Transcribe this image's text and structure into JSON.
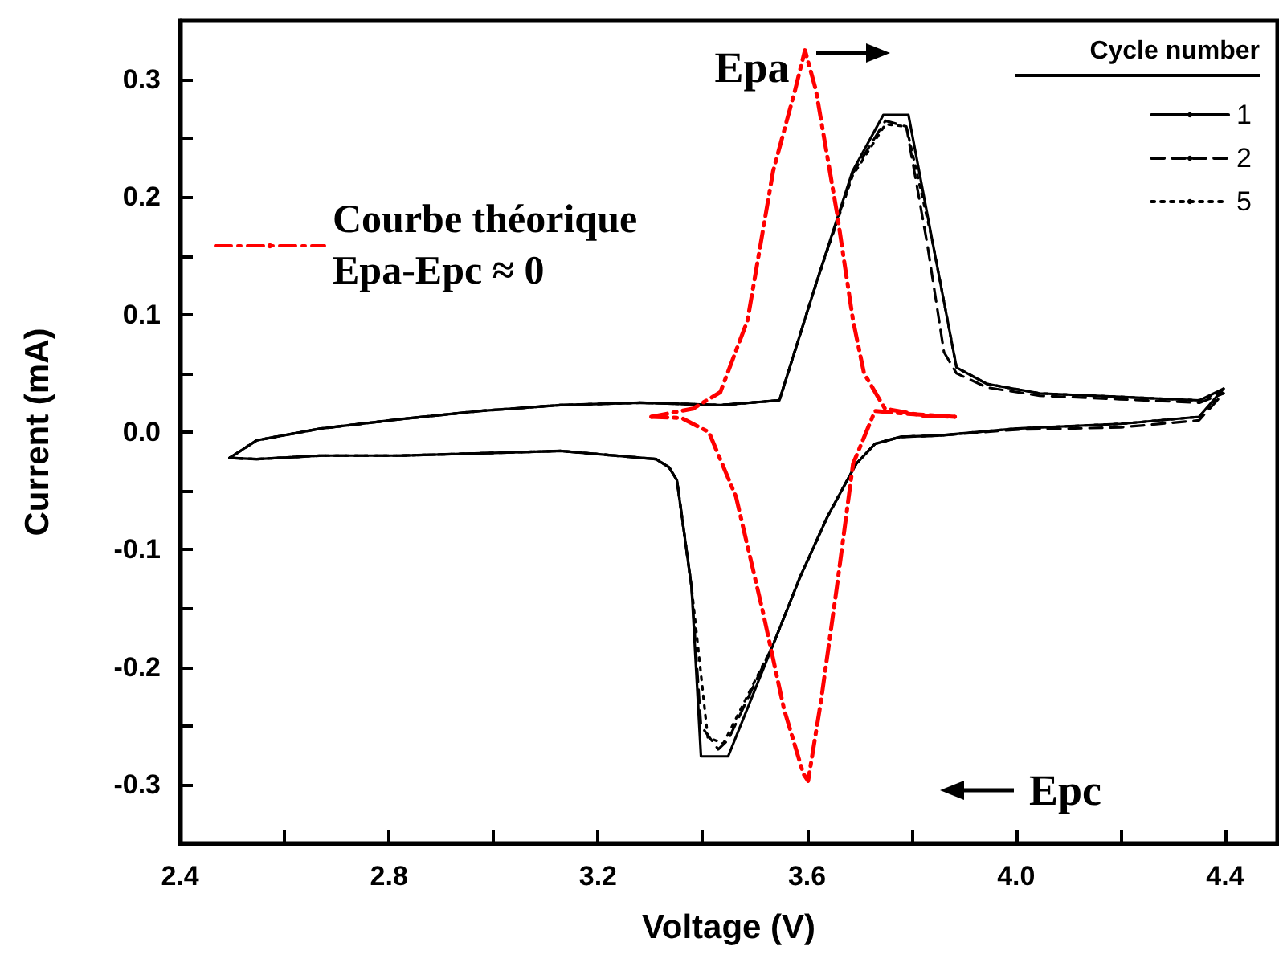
{
  "chart_data": {
    "type": "line",
    "xlabel": "Voltage (V)",
    "ylabel": "Current (mA)",
    "legend_title": "Cycle number",
    "legend": "top right",
    "grid": false,
    "marker": "none",
    "xlim": [
      2.4,
      4.5
    ],
    "ylim": [
      -0.35,
      0.35
    ],
    "xticks": [
      2.4,
      {
        "value": 2.6,
        "label": null
      },
      2.8,
      {
        "value": 3.0,
        "label": null
      },
      3.2,
      {
        "value": 3.4,
        "label": null
      },
      3.6,
      {
        "value": 3.8,
        "label": null
      },
      {
        "value": 4.0,
        "label": "4.0"
      },
      {
        "value": 4.2,
        "label": null
      },
      4.4
    ],
    "yticks": [
      -0.3,
      {
        "value": -0.25,
        "label": null
      },
      -0.2,
      {
        "value": -0.15,
        "label": null
      },
      -0.1,
      {
        "value": -0.05,
        "label": null
      },
      {
        "value": 0,
        "label": "0.0"
      },
      {
        "value": 0.05,
        "label": null
      },
      0.1,
      {
        "value": 0.15,
        "label": null
      },
      0.2,
      {
        "value": 0.25,
        "label": null
      },
      0.3
    ],
    "annotations": [
      "Epa",
      "Epc"
    ],
    "series": [
      {
        "name": "1",
        "color": "#000000",
        "line_style": "solid",
        "x": [
          2.495,
          2.547,
          2.669,
          2.822,
          2.975,
          3.128,
          3.281,
          3.434,
          3.547,
          3.617,
          3.687,
          3.746,
          3.794,
          3.84,
          3.886,
          3.944,
          4.045,
          4.198,
          4.351,
          4.397
        ],
        "values": [
          -0.022,
          -0.007,
          0.003,
          0.011,
          0.018,
          0.023,
          0.025,
          0.023,
          0.027,
          0.126,
          0.222,
          0.27,
          0.27,
          0.162,
          0.055,
          0.041,
          0.033,
          0.03,
          0.027,
          0.037
        ]
      },
      {
        "color": "#000000",
        "line_style": "solid",
        "x": [
          2.495,
          2.547,
          2.669,
          2.822,
          2.975,
          3.128,
          3.311,
          3.336,
          3.351,
          3.379,
          3.397,
          3.449,
          3.535,
          3.587,
          3.639,
          3.694,
          3.73,
          3.779,
          3.85,
          4.0,
          4.2,
          4.35,
          4.397
        ],
        "values": [
          -0.022,
          -0.023,
          -0.02,
          -0.02,
          -0.018,
          -0.016,
          -0.023,
          -0.03,
          -0.041,
          -0.132,
          -0.276,
          -0.276,
          -0.181,
          -0.123,
          -0.072,
          -0.027,
          -0.01,
          -0.004,
          -0.003,
          0.003,
          0.007,
          0.013,
          0.037
        ]
      },
      {
        "name": "2",
        "color": "#000000",
        "line_style": "dashed",
        "x": [
          2.495,
          2.547,
          2.669,
          2.822,
          2.975,
          3.128,
          3.281,
          3.434,
          3.547,
          3.617,
          3.687,
          3.75,
          3.79,
          3.83,
          3.862,
          3.886,
          3.944,
          4.045,
          4.198,
          4.351,
          4.397
        ],
        "values": [
          -0.022,
          -0.007,
          0.003,
          0.011,
          0.018,
          0.023,
          0.025,
          0.023,
          0.027,
          0.126,
          0.22,
          0.265,
          0.26,
          0.16,
          0.068,
          0.05,
          0.038,
          0.031,
          0.028,
          0.025,
          0.033
        ]
      },
      {
        "color": "#000000",
        "line_style": "dashed",
        "x": [
          2.495,
          2.547,
          2.669,
          2.822,
          2.975,
          3.128,
          3.311,
          3.336,
          3.351,
          3.379,
          3.397,
          3.43,
          3.449,
          3.535,
          3.587,
          3.639,
          3.694,
          3.73,
          3.779,
          3.85,
          4.0,
          4.2,
          4.35,
          4.397
        ],
        "values": [
          -0.022,
          -0.023,
          -0.02,
          -0.02,
          -0.018,
          -0.016,
          -0.023,
          -0.03,
          -0.041,
          -0.132,
          -0.25,
          -0.27,
          -0.262,
          -0.181,
          -0.123,
          -0.072,
          -0.027,
          -0.01,
          -0.004,
          -0.003,
          0.002,
          0.004,
          0.01,
          0.033
        ]
      },
      {
        "name": "5",
        "color": "#000000",
        "line_style": "dotted",
        "x": [
          2.495,
          2.547,
          2.669,
          2.822,
          2.975,
          3.128,
          3.281,
          3.434,
          3.547,
          3.617,
          3.687,
          3.75,
          3.79,
          3.84,
          3.886,
          3.944,
          4.045,
          4.198,
          4.351,
          4.397
        ],
        "values": [
          -0.022,
          -0.007,
          0.003,
          0.011,
          0.018,
          0.023,
          0.025,
          0.023,
          0.027,
          0.126,
          0.218,
          0.262,
          0.26,
          0.162,
          0.055,
          0.041,
          0.033,
          0.03,
          0.027,
          0.035
        ]
      },
      {
        "color": "#000000",
        "line_style": "dotted",
        "x": [
          2.495,
          2.547,
          2.669,
          2.822,
          2.975,
          3.128,
          3.311,
          3.336,
          3.351,
          3.379,
          3.41,
          3.44,
          3.535,
          3.587,
          3.639,
          3.694,
          3.73,
          3.779,
          3.85,
          4.0,
          4.2,
          4.35,
          4.397
        ],
        "values": [
          -0.022,
          -0.023,
          -0.02,
          -0.02,
          -0.018,
          -0.016,
          -0.023,
          -0.03,
          -0.041,
          -0.132,
          -0.26,
          -0.265,
          -0.181,
          -0.123,
          -0.072,
          -0.027,
          -0.01,
          -0.004,
          -0.003,
          0.003,
          0.007,
          0.013,
          0.035
        ]
      },
      {
        "name": "Courbe théorique Epa-Epc ≈ 0",
        "color": "#ff0000",
        "line_style": "dashdot",
        "x": [
          3.302,
          3.382,
          3.434,
          3.486,
          3.535,
          3.577,
          3.596,
          3.617,
          3.657,
          3.688,
          3.709,
          3.749,
          3.822,
          3.883
        ],
        "values": [
          0.013,
          0.02,
          0.034,
          0.095,
          0.222,
          0.291,
          0.325,
          0.291,
          0.187,
          0.095,
          0.05,
          0.02,
          0.014,
          0.013
        ]
      },
      {
        "color": "#ff0000",
        "line_style": "dashdot",
        "x": [
          3.302,
          3.36,
          3.412,
          3.464,
          3.516,
          3.556,
          3.593,
          3.602,
          3.627,
          3.657,
          3.688,
          3.73,
          3.779,
          3.883
        ],
        "values": [
          0.013,
          0.012,
          0,
          -0.055,
          -0.154,
          -0.236,
          -0.291,
          -0.297,
          -0.228,
          -0.132,
          -0.027,
          0.018,
          0.016,
          0.013
        ]
      }
    ]
  }
}
